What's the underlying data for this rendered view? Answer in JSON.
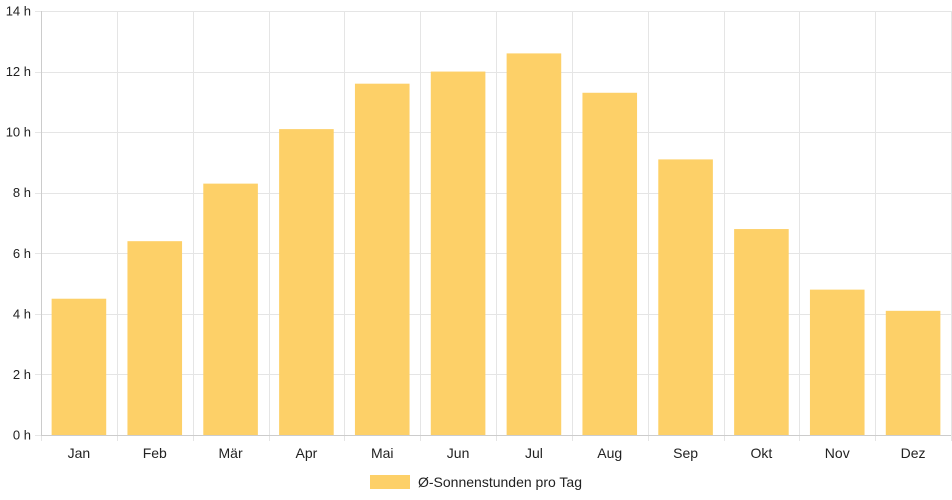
{
  "chart_data": {
    "type": "bar",
    "categories": [
      "Jan",
      "Feb",
      "Mär",
      "Apr",
      "Mai",
      "Jun",
      "Jul",
      "Aug",
      "Sep",
      "Okt",
      "Nov",
      "Dez"
    ],
    "series": [
      {
        "name": "Ø-Sonnenstunden pro Tag",
        "values": [
          4.5,
          6.4,
          8.3,
          10.1,
          11.6,
          12.0,
          12.6,
          11.3,
          9.1,
          6.8,
          4.8,
          4.1
        ]
      }
    ],
    "ylim": [
      0,
      14
    ],
    "y_ticks": [
      0,
      2,
      4,
      6,
      8,
      10,
      12,
      14
    ],
    "y_tick_suffix": " h",
    "grid": true,
    "legend_position": "bottom",
    "bar_color": "#fdd068",
    "grid_color": "#e5e5e5",
    "axis_color": "#cccccc",
    "text_color": "#222222"
  }
}
